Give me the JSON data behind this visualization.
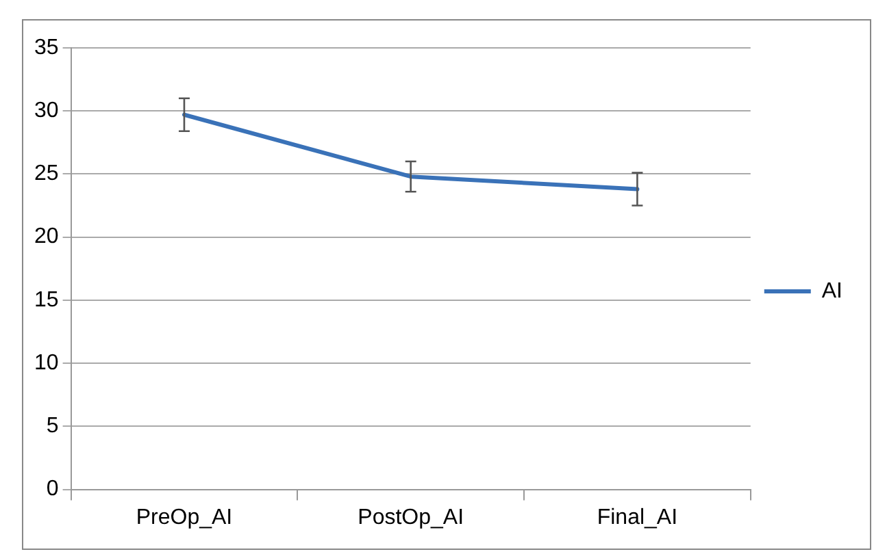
{
  "chart_data": {
    "type": "line",
    "categories": [
      "PreOp_AI",
      "PostOp_AI",
      "Final_AI"
    ],
    "series": [
      {
        "name": "AI",
        "color": "#3a72b8",
        "values": [
          29.7,
          24.8,
          23.8
        ],
        "errors": [
          1.3,
          1.2,
          1.3
        ]
      }
    ],
    "ylim": [
      0,
      35
    ],
    "yticks": [
      0,
      5,
      10,
      15,
      20,
      25,
      30,
      35
    ],
    "grid": "y",
    "legend": "right",
    "marker": "none",
    "line_style": "solid"
  }
}
